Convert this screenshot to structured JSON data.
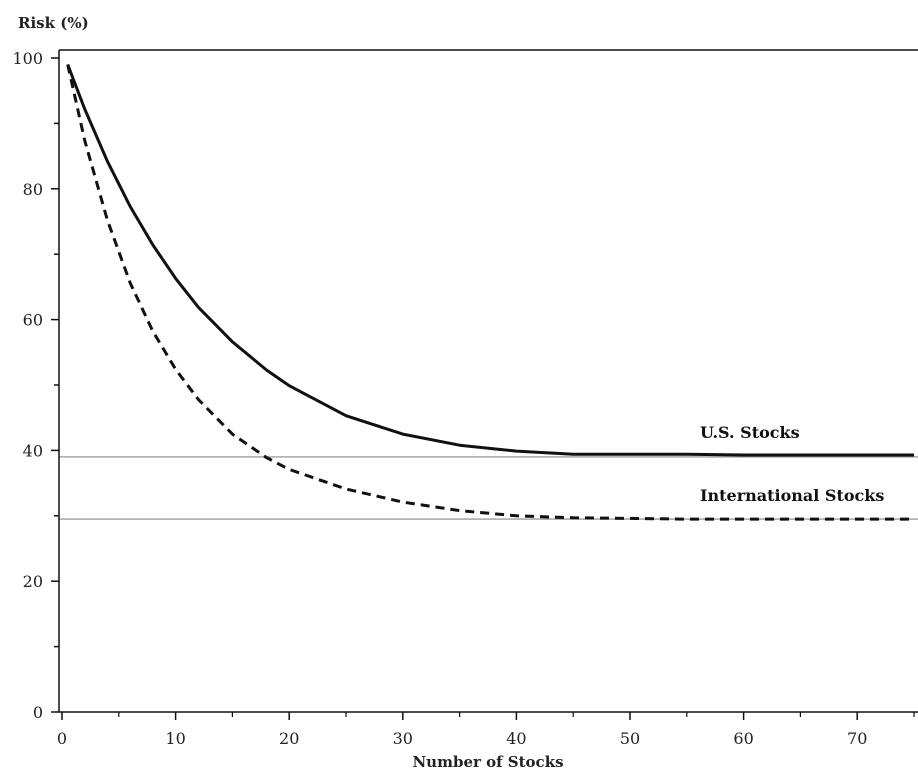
{
  "chart_data": {
    "type": "line",
    "title": "",
    "ylabel": "Risk (%)",
    "xlabel": "Number of Stocks",
    "xlim": [
      0,
      75
    ],
    "ylim": [
      0,
      100
    ],
    "x_ticks": [
      0,
      10,
      20,
      30,
      40,
      50,
      60,
      70
    ],
    "y_ticks": [
      0,
      20,
      40,
      60,
      80,
      100
    ],
    "y_labeled_ticks": [
      0,
      20,
      40,
      60,
      80,
      100
    ],
    "grid": false,
    "reference_lines": [
      {
        "y": 39,
        "color": "#888888"
      },
      {
        "y": 29.5,
        "color": "#888888"
      }
    ],
    "series": [
      {
        "name": "U.S. Stocks",
        "style": "solid",
        "color": "#111111",
        "x": [
          0.5,
          2,
          4,
          6,
          8,
          10,
          12,
          15,
          18,
          20,
          25,
          30,
          35,
          40,
          45,
          50,
          55,
          60,
          65,
          70,
          75
        ],
        "y": [
          99,
          92.2,
          84.2,
          77.3,
          71.4,
          66.3,
          61.9,
          56.6,
          52.3,
          49.9,
          45.3,
          42.5,
          40.8,
          39.9,
          39.4,
          39.4,
          39.4,
          39.3,
          39.3,
          39.3,
          39.3
        ]
      },
      {
        "name": "International Stocks",
        "style": "dashed",
        "color": "#111111",
        "x": [
          0.5,
          2,
          4,
          6,
          8,
          10,
          12,
          15,
          18,
          20,
          25,
          30,
          35,
          40,
          45,
          50,
          55,
          60,
          65,
          70,
          75
        ],
        "y": [
          99,
          87.4,
          75.2,
          65.6,
          58.2,
          52.4,
          47.8,
          42.5,
          38.9,
          37.1,
          34.1,
          32.1,
          30.8,
          30.0,
          29.7,
          29.6,
          29.5,
          29.5,
          29.5,
          29.5,
          29.5
        ]
      }
    ]
  }
}
